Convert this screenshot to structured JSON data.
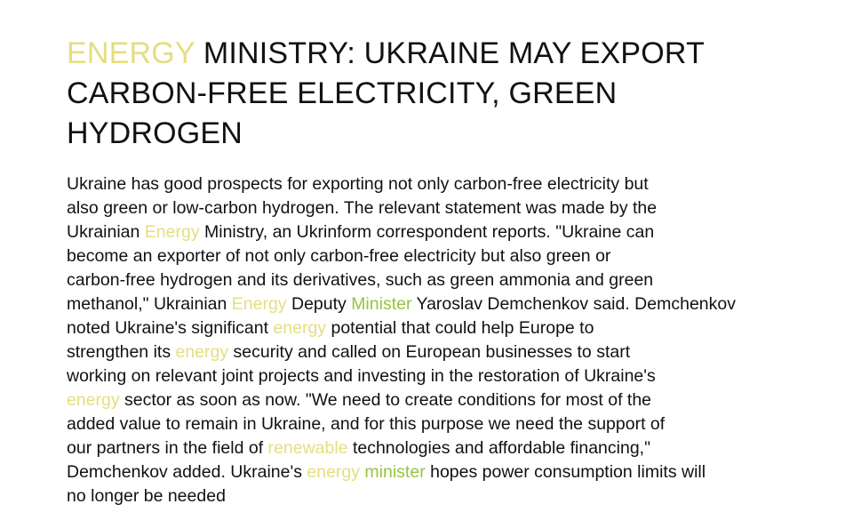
{
  "article": {
    "title": {
      "keyword": "ENERGY",
      "line1_rest": " MINISTRY: UKRAINE MAY EXPORT",
      "line2": "CARBON-FREE ELECTRICITY, GREEN",
      "line3": "HYDROGEN"
    },
    "body": {
      "l1": "Ukraine has good prospects for exporting not only carbon-free electricity but",
      "l2": "also green or low-carbon hydrogen. The relevant statement was made by the",
      "l3a": "Ukrainian ",
      "l3k": "Energy",
      "l3b": " Ministry, an Ukrinform correspondent reports. \"Ukraine can",
      "l4": "become an exporter of not only carbon-free electricity but also green or",
      "l5": "carbon-free hydrogen and its derivatives, such as green ammonia and green",
      "l6a": "methanol,\" Ukrainian ",
      "l6k": "Energy",
      "l6m": " Deputy ",
      "l6k2": "Minister",
      "l6b": " Yaroslav Demchenkov said. Demchenkov",
      "l7a": "noted Ukraine's significant ",
      "l7k": "energy",
      "l7b": " potential that could help Europe to",
      "l8a": "strengthen its ",
      "l8k": "energy",
      "l8b": " security and called on European businesses to start",
      "l9": "working on relevant joint projects and investing in the restoration of Ukraine's",
      "l10k": "energy",
      "l10b": " sector as soon as now. \"We need to create conditions for most of the",
      "l11": "added value to remain in Ukraine, and for this purpose we need the support of",
      "l12a": "our partners in the field of ",
      "l12k": "renewable",
      "l12b": " technologies and affordable financing,\"",
      "l13a": "Demchenkov added. Ukraine's ",
      "l13k": "energy",
      "l13m": " ",
      "l13k2": "minister",
      "l13b": " hopes power consumption limits will",
      "l14": "no longer be needed"
    }
  },
  "colors": {
    "text": "#111111",
    "highlight_yellow": "#e4de82",
    "highlight_green": "#97c43e",
    "background": "#ffffff"
  }
}
